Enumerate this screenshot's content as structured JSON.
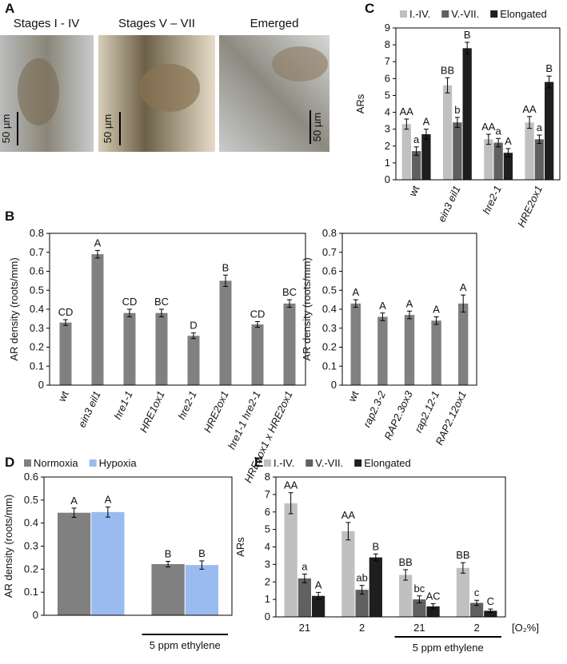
{
  "panel_a": {
    "letter": "A",
    "images": [
      {
        "label": "Stages I - IV",
        "scale_bar": "50 µm"
      },
      {
        "label": "Stages V – VII",
        "scale_bar": "50 µm"
      },
      {
        "label": "Emerged",
        "scale_bar": "50 µm"
      }
    ]
  },
  "chart_data": [
    {
      "type": "bar",
      "panel": "C",
      "ylabel": "ARs",
      "categories": [
        "wt",
        "ein3 eil1",
        "hre2-1",
        "HRE2ox1"
      ],
      "series": [
        {
          "name": "I.-IV.",
          "color": "#c0c0c0",
          "values": [
            3.3,
            5.6,
            2.4,
            3.4
          ],
          "errors": [
            0.3,
            0.45,
            0.3,
            0.35
          ],
          "letters": [
            "AA",
            "BB",
            "AA",
            "AA"
          ]
        },
        {
          "name": "V.-VII.",
          "color": "#606060",
          "values": [
            1.7,
            3.4,
            2.2,
            2.4
          ],
          "errors": [
            0.25,
            0.3,
            0.25,
            0.25
          ],
          "letters": [
            "a",
            "b",
            "a",
            "a"
          ]
        },
        {
          "name": "Elongated",
          "color": "#1e1e1e",
          "values": [
            2.7,
            7.8,
            1.6,
            5.8
          ],
          "errors": [
            0.3,
            0.35,
            0.25,
            0.35
          ],
          "letters": [
            "A",
            "B",
            "A",
            "B"
          ]
        }
      ],
      "ylim": [
        0,
        9
      ],
      "yticks": [
        0,
        1,
        2,
        3,
        4,
        5,
        6,
        7,
        8,
        9
      ]
    },
    {
      "type": "bar",
      "panel": "B",
      "ylabel": "AR density (roots/mm)",
      "categories": [
        "wt",
        "ein3 eil1",
        "hre1-1",
        "HRE1ox1",
        "hre2-1",
        "HRE2ox1",
        "hre1-1 hre2-1",
        "HRE1ox1 x HRE2ox1"
      ],
      "values": [
        0.33,
        0.69,
        0.38,
        0.38,
        0.26,
        0.55,
        0.32,
        0.43
      ],
      "errors": [
        0.015,
        0.02,
        0.02,
        0.02,
        0.015,
        0.03,
        0.015,
        0.02
      ],
      "letters": [
        "CD",
        "A",
        "CD",
        "BC",
        "D",
        "B",
        "CD",
        "BC"
      ],
      "color": "#808080",
      "ylim": [
        0,
        0.8
      ],
      "yticks": [
        0,
        0.1,
        0.2,
        0.3,
        0.4,
        0.5,
        0.6,
        0.7,
        0.8
      ]
    },
    {
      "type": "bar",
      "ylabel": "AR density (roots/mm)",
      "categories": [
        "wt",
        "rap2.3-2",
        "RAP2.3ox3",
        "rap2.12-1",
        "RAP2.12ox1"
      ],
      "values": [
        0.43,
        0.36,
        0.37,
        0.34,
        0.43
      ],
      "errors": [
        0.02,
        0.02,
        0.02,
        0.02,
        0.045
      ],
      "letters": [
        "A",
        "A",
        "A",
        "A",
        "A"
      ],
      "color": "#808080",
      "ylim": [
        0,
        0.8
      ],
      "yticks": [
        0,
        0.1,
        0.2,
        0.3,
        0.4,
        0.5,
        0.6,
        0.7,
        0.8
      ]
    },
    {
      "type": "bar",
      "panel": "D",
      "ylabel": "AR density (roots/mm)",
      "categories": [
        null,
        null
      ],
      "group_label": "5 ppm ethylene",
      "series": [
        {
          "name": "Normoxia",
          "color": "#808080",
          "values": [
            0.445,
            0.222
          ],
          "errors": [
            0.02,
            0.012
          ],
          "letters": [
            "A",
            "B"
          ]
        },
        {
          "name": "Hypoxia",
          "color": "#99bbf0",
          "values": [
            0.448,
            0.218
          ],
          "errors": [
            0.022,
            0.018
          ],
          "letters": [
            "A",
            "B"
          ]
        }
      ],
      "ylim": [
        0,
        0.6
      ],
      "yticks": [
        0,
        0.1,
        0.2,
        0.3,
        0.4,
        0.5,
        0.6
      ]
    },
    {
      "type": "bar",
      "panel": "E",
      "ylabel": "ARs",
      "categories": [
        "21",
        "2",
        "21",
        "2"
      ],
      "x_label": "[O₂%]",
      "group_label": "5 ppm ethylene",
      "series": [
        {
          "name": "I.-IV.",
          "color": "#c0c0c0",
          "values": [
            6.5,
            4.9,
            2.4,
            2.8
          ],
          "errors": [
            0.6,
            0.5,
            0.3,
            0.3
          ],
          "letters": [
            "AA",
            "AA",
            "BB",
            "BB"
          ]
        },
        {
          "name": "V.-VII.",
          "color": "#606060",
          "values": [
            2.2,
            1.55,
            1.0,
            0.8
          ],
          "errors": [
            0.25,
            0.25,
            0.2,
            0.15
          ],
          "letters": [
            "a",
            "ab",
            "bc",
            "c"
          ]
        },
        {
          "name": "Elongated",
          "color": "#1e1e1e",
          "values": [
            1.2,
            3.4,
            0.6,
            0.35
          ],
          "errors": [
            0.2,
            0.2,
            0.15,
            0.1
          ],
          "letters": [
            "A",
            "B",
            "AC",
            "C"
          ]
        }
      ],
      "ylim": [
        0,
        8
      ],
      "yticks": [
        0,
        1,
        2,
        3,
        4,
        5,
        6,
        7,
        8
      ]
    }
  ]
}
